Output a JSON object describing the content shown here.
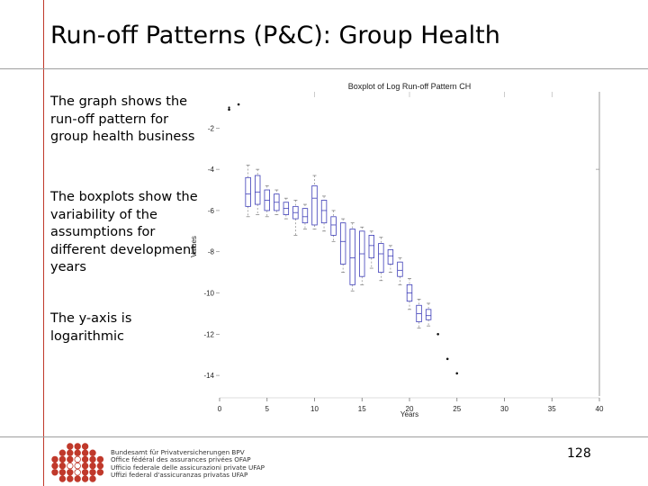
{
  "slide": {
    "title": "Run-off Patterns (P&C): Group Health",
    "paragraphs": [
      "The graph shows the run-off pattern for group health business",
      "The boxplots show the variability of the assumptions for different development years",
      "The y-axis is logarithmic"
    ],
    "page_number": "128"
  },
  "footer": {
    "agency_lines": [
      "Bundesamt für Privatversicherungen BPV",
      "Office fédéral des assurances privées OFAP",
      "Ufficio federale delle assicurazioni private UFAP",
      "Uffizi federal d'assicuranzas privatas UFAP"
    ]
  },
  "colors": {
    "accent_red": "#c0392b",
    "box_blue": "#3d3db8",
    "rule_gray": "#9e9e9e"
  },
  "chart_data": {
    "type": "boxplot",
    "title": "Boxplot of Log Run-off Pattern CH",
    "xlabel": "Years",
    "ylabel": "Values",
    "xlim": [
      0,
      40
    ],
    "ylim": [
      -15,
      -0.5
    ],
    "x_ticks": [
      0,
      5,
      10,
      15,
      20,
      25,
      30,
      35,
      40
    ],
    "y_ticks": [
      -2,
      -4,
      -6,
      -8,
      -10,
      -12,
      -14
    ],
    "boxes": [
      {
        "x": 1,
        "q1": -1.1,
        "q3": -1.1,
        "median": -1.1,
        "whisker_low": -1.1,
        "whisker_high": -1.1,
        "outliers": [
          -1.0
        ]
      },
      {
        "x": 2,
        "q1": -0.85,
        "q3": -0.85,
        "median": -0.85,
        "whisker_low": -0.85,
        "whisker_high": -0.85,
        "outliers": []
      },
      {
        "x": 3,
        "q1": -5.8,
        "q3": -4.4,
        "median": -5.2,
        "whisker_low": -6.3,
        "whisker_high": -3.8,
        "outliers": []
      },
      {
        "x": 4,
        "q1": -5.7,
        "q3": -4.3,
        "median": -5.1,
        "whisker_low": -6.2,
        "whisker_high": -4.0,
        "outliers": []
      },
      {
        "x": 5,
        "q1": -6.0,
        "q3": -5.0,
        "median": -5.5,
        "whisker_low": -6.3,
        "whisker_high": -4.8,
        "outliers": []
      },
      {
        "x": 6,
        "q1": -6.0,
        "q3": -5.2,
        "median": -5.6,
        "whisker_low": -6.2,
        "whisker_high": -5.0,
        "outliers": []
      },
      {
        "x": 7,
        "q1": -6.2,
        "q3": -5.6,
        "median": -5.9,
        "whisker_low": -6.4,
        "whisker_high": -5.4,
        "outliers": []
      },
      {
        "x": 8,
        "q1": -6.4,
        "q3": -5.8,
        "median": -6.1,
        "whisker_low": -7.2,
        "whisker_high": -5.5,
        "outliers": []
      },
      {
        "x": 9,
        "q1": -6.6,
        "q3": -5.9,
        "median": -6.3,
        "whisker_low": -6.9,
        "whisker_high": -5.7,
        "outliers": []
      },
      {
        "x": 10,
        "q1": -6.7,
        "q3": -4.8,
        "median": -5.4,
        "whisker_low": -6.9,
        "whisker_high": -4.3,
        "outliers": []
      },
      {
        "x": 11,
        "q1": -6.6,
        "q3": -5.5,
        "median": -6.0,
        "whisker_low": -7.0,
        "whisker_high": -5.3,
        "outliers": []
      },
      {
        "x": 12,
        "q1": -7.2,
        "q3": -6.3,
        "median": -6.7,
        "whisker_low": -7.5,
        "whisker_high": -6.0,
        "outliers": []
      },
      {
        "x": 13,
        "q1": -8.6,
        "q3": -6.6,
        "median": -7.5,
        "whisker_low": -9.0,
        "whisker_high": -6.4,
        "outliers": []
      },
      {
        "x": 14,
        "q1": -9.6,
        "q3": -6.9,
        "median": -8.3,
        "whisker_low": -9.9,
        "whisker_high": -6.6,
        "outliers": []
      },
      {
        "x": 15,
        "q1": -9.2,
        "q3": -7.0,
        "median": -8.1,
        "whisker_low": -9.6,
        "whisker_high": -6.8,
        "outliers": []
      },
      {
        "x": 16,
        "q1": -8.3,
        "q3": -7.2,
        "median": -7.7,
        "whisker_low": -8.8,
        "whisker_high": -7.0,
        "outliers": []
      },
      {
        "x": 17,
        "q1": -9.0,
        "q3": -7.6,
        "median": -8.1,
        "whisker_low": -9.4,
        "whisker_high": -7.3,
        "outliers": []
      },
      {
        "x": 18,
        "q1": -8.6,
        "q3": -7.9,
        "median": -8.2,
        "whisker_low": -9.0,
        "whisker_high": -7.7,
        "outliers": []
      },
      {
        "x": 19,
        "q1": -9.2,
        "q3": -8.5,
        "median": -8.9,
        "whisker_low": -9.6,
        "whisker_high": -8.3,
        "outliers": []
      },
      {
        "x": 20,
        "q1": -10.4,
        "q3": -9.6,
        "median": -10.0,
        "whisker_low": -10.8,
        "whisker_high": -9.3,
        "outliers": []
      },
      {
        "x": 21,
        "q1": -11.4,
        "q3": -10.6,
        "median": -11.0,
        "whisker_low": -11.7,
        "whisker_high": -10.3,
        "outliers": []
      },
      {
        "x": 22,
        "q1": -11.3,
        "q3": -10.8,
        "median": -11.1,
        "whisker_low": -11.6,
        "whisker_high": -10.5,
        "outliers": []
      },
      {
        "x": 23,
        "q1": -12.0,
        "q3": -12.0,
        "median": -12.0,
        "whisker_low": -12.0,
        "whisker_high": -12.0,
        "outliers": []
      },
      {
        "x": 24,
        "q1": -13.2,
        "q3": -13.2,
        "median": -13.2,
        "whisker_low": -13.2,
        "whisker_high": -13.2,
        "outliers": []
      },
      {
        "x": 25,
        "q1": -13.9,
        "q3": -13.9,
        "median": -13.9,
        "whisker_low": -13.9,
        "whisker_high": -13.9,
        "outliers": []
      }
    ]
  }
}
